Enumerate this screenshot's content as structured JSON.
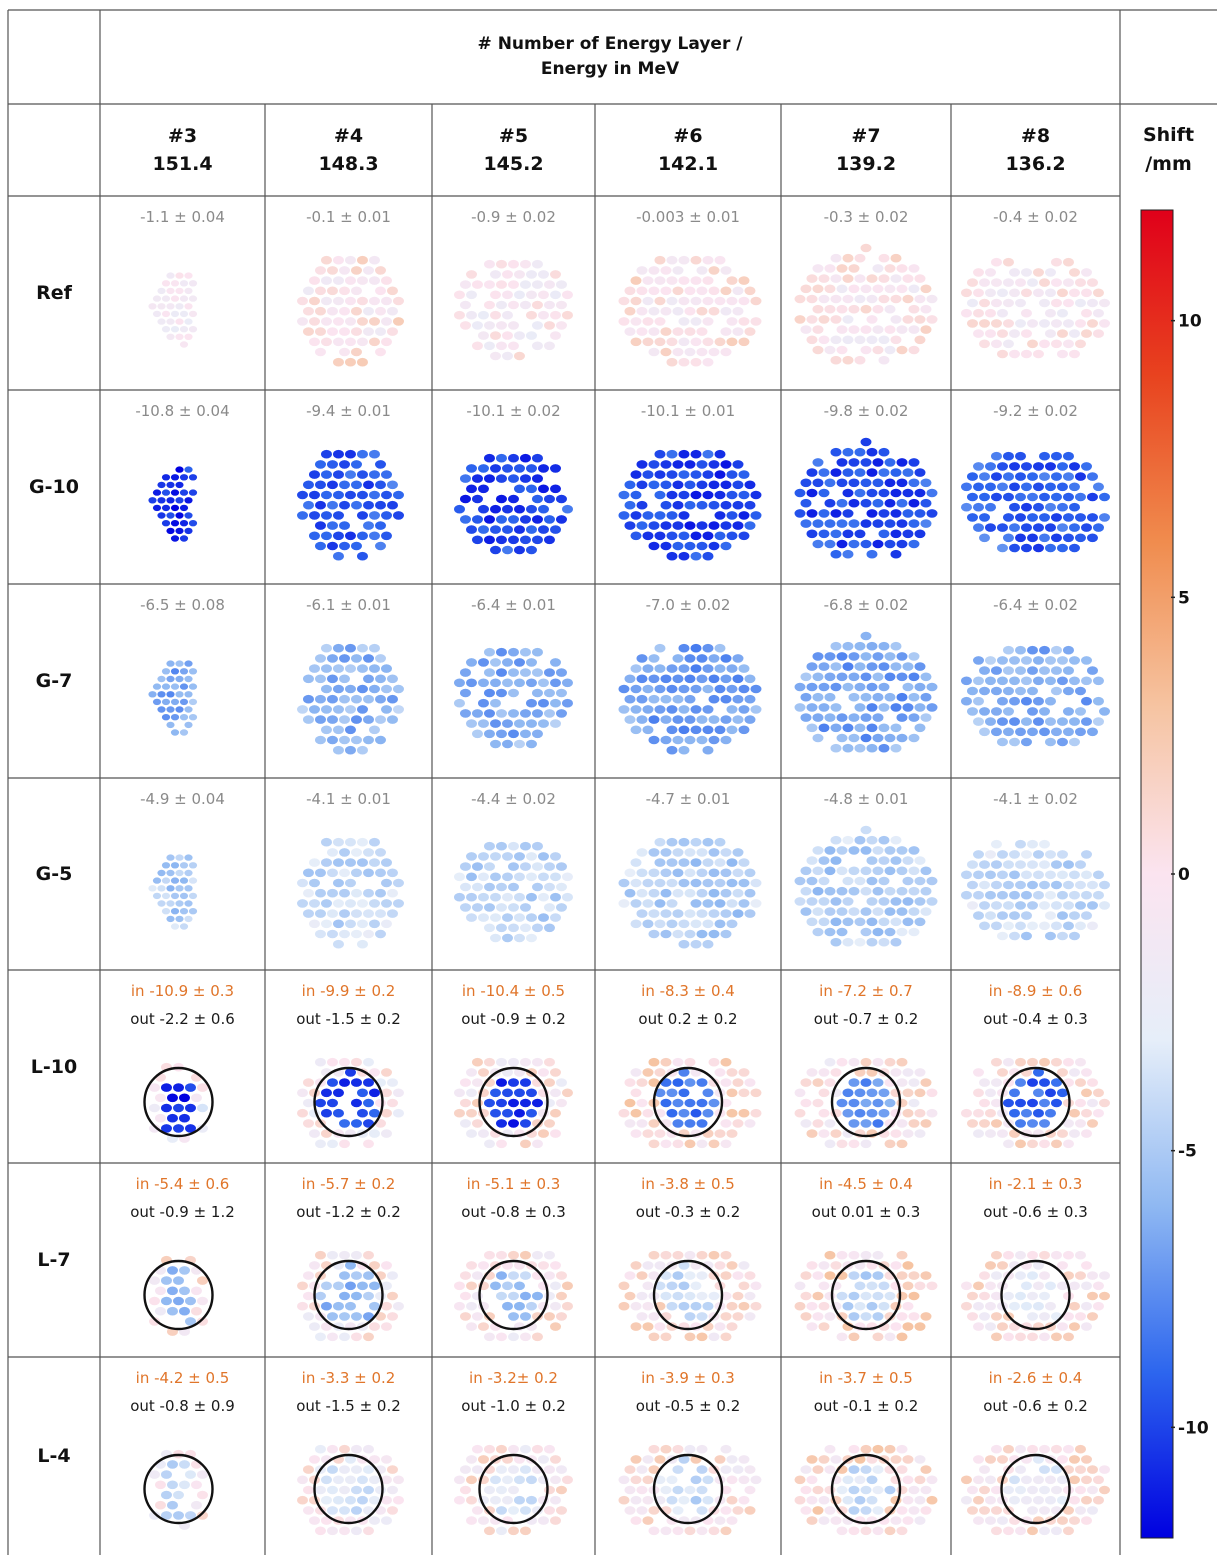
{
  "header": {
    "title_line1": "# Number of Energy Layer /",
    "title_line2": "Energy in MeV",
    "shift_label_line1": "Shift",
    "shift_label_line2": "/mm"
  },
  "chart_data": {
    "type": "heatmap",
    "colormap": {
      "min": -12,
      "max": 12,
      "stops": [
        "#0000e0",
        "#2d66ee",
        "#8fb8f2",
        "#e6eef9",
        "#fbe4f0",
        "#f6c4a2",
        "#f08c4e",
        "#e8431f",
        "#e0001a"
      ],
      "ticks": [
        {
          "value": 10,
          "label": "10"
        },
        {
          "value": 5,
          "label": "5"
        },
        {
          "value": 0,
          "label": "0"
        },
        {
          "value": -5,
          "label": "-5"
        },
        {
          "value": -10,
          "label": "-10"
        }
      ]
    },
    "columns": [
      {
        "layer": "#3",
        "energy": "151.4"
      },
      {
        "layer": "#4",
        "energy": "148.3"
      },
      {
        "layer": "#5",
        "energy": "145.2"
      },
      {
        "layer": "#6",
        "energy": "142.1"
      },
      {
        "layer": "#7",
        "energy": "139.2"
      },
      {
        "layer": "#8",
        "energy": "136.2"
      }
    ],
    "rows": [
      {
        "label": "Ref",
        "kind": "global",
        "cells": [
          {
            "text": "-1.1 ± 0.04",
            "mean": -1.1
          },
          {
            "text": "-0.1 ± 0.01",
            "mean": -0.1
          },
          {
            "text": "-0.9 ± 0.02",
            "mean": -0.9
          },
          {
            "text": "-0.003 ± 0.01",
            "mean": -0.003
          },
          {
            "text": "-0.3 ± 0.02",
            "mean": -0.3
          },
          {
            "text": "-0.4 ± 0.02",
            "mean": -0.4
          }
        ]
      },
      {
        "label": "G-10",
        "kind": "global",
        "cells": [
          {
            "text": "-10.8 ± 0.04",
            "mean": -10.8
          },
          {
            "text": "-9.4 ± 0.01",
            "mean": -9.4
          },
          {
            "text": "-10.1 ± 0.02",
            "mean": -10.1
          },
          {
            "text": "-10.1 ± 0.01",
            "mean": -10.1
          },
          {
            "text": "-9.8 ± 0.02",
            "mean": -9.8
          },
          {
            "text": "-9.2 ± 0.02",
            "mean": -9.2
          }
        ]
      },
      {
        "label": "G-7",
        "kind": "global",
        "cells": [
          {
            "text": "-6.5 ± 0.08",
            "mean": -6.5
          },
          {
            "text": "-6.1 ± 0.01",
            "mean": -6.1
          },
          {
            "text": "-6.4 ± 0.01",
            "mean": -6.4
          },
          {
            "text": "-7.0 ± 0.02",
            "mean": -7.0
          },
          {
            "text": "-6.8 ± 0.02",
            "mean": -6.8
          },
          {
            "text": "-6.4 ± 0.02",
            "mean": -6.4
          }
        ]
      },
      {
        "label": "G-5",
        "kind": "global",
        "cells": [
          {
            "text": "-4.9 ±  0.04",
            "mean": -4.9
          },
          {
            "text": "-4.1 ± 0.01",
            "mean": -4.1
          },
          {
            "text": "-4.4 ± 0.02",
            "mean": -4.4
          },
          {
            "text": "-4.7 ± 0.01",
            "mean": -4.7
          },
          {
            "text": "-4.8 ± 0.01",
            "mean": -4.8
          },
          {
            "text": "-4.1 ± 0.02",
            "mean": -4.1
          }
        ]
      },
      {
        "label": "L-10",
        "kind": "local",
        "cells": [
          {
            "in_text": "in -10.9 ± 0.3",
            "out_text": "out  -2.2 ± 0.6",
            "in_mean": -10.9,
            "out_mean": -2.2
          },
          {
            "in_text": "in -9.9 ± 0.2",
            "out_text": "out -1.5 ± 0.2",
            "in_mean": -9.9,
            "out_mean": -1.5
          },
          {
            "in_text": "in -10.4 ± 0.5",
            "out_text": "out  -0.9 ± 0.2",
            "in_mean": -10.4,
            "out_mean": -0.9
          },
          {
            "in_text": "in -8.3 ± 0.4",
            "out_text": "out 0.2 ± 0.2",
            "in_mean": -8.3,
            "out_mean": 0.2
          },
          {
            "in_text": "in -7.2 ± 0.7",
            "out_text": "out -0.7 ± 0.2",
            "in_mean": -7.2,
            "out_mean": -0.7
          },
          {
            "in_text": "in -8.9 ± 0.6",
            "out_text": "out -0.4  ± 0.3",
            "in_mean": -8.9,
            "out_mean": -0.4
          }
        ]
      },
      {
        "label": "L-7",
        "kind": "local",
        "cells": [
          {
            "in_text": "in -5.4 ± 0.6",
            "out_text": "out -0.9 ± 1.2",
            "in_mean": -5.4,
            "out_mean": -0.9
          },
          {
            "in_text": "in -5.7 ± 0.2",
            "out_text": "out -1.2 ± 0.2",
            "in_mean": -5.7,
            "out_mean": -1.2
          },
          {
            "in_text": "in -5.1 ± 0.3",
            "out_text": "out -0.8 ± 0.3",
            "in_mean": -5.1,
            "out_mean": -0.8
          },
          {
            "in_text": "in -3.8 ± 0.5",
            "out_text": "out -0.3 ± 0.2",
            "in_mean": -3.8,
            "out_mean": -0.3
          },
          {
            "in_text": "in -4.5 ± 0.4",
            "out_text": "out 0.01 ± 0.3",
            "in_mean": -4.5,
            "out_mean": 0.01
          },
          {
            "in_text": "in -2.1 ± 0.3",
            "out_text": "out -0.6 ± 0.3",
            "in_mean": -2.1,
            "out_mean": -0.6
          }
        ]
      },
      {
        "label": "L-4",
        "kind": "local",
        "cells": [
          {
            "in_text": "in -4.2 ± 0.5",
            "out_text": "out -0.8 ±  0.9",
            "in_mean": -4.2,
            "out_mean": -0.8
          },
          {
            "in_text": "in -3.3 ± 0.2",
            "out_text": "out -1.5 ± 0.2",
            "in_mean": -3.3,
            "out_mean": -1.5
          },
          {
            "in_text": "in -3.2± 0.2",
            "out_text": "out -1.0 ± 0.2",
            "in_mean": -3.2,
            "out_mean": -1.0
          },
          {
            "in_text": "in -3.9 ± 0.3",
            "out_text": "out -0.5 ± 0.2",
            "in_mean": -3.9,
            "out_mean": -0.5
          },
          {
            "in_text": "in -3.7 ± 0.5",
            "out_text": "out -0.1 ± 0.2",
            "in_mean": -3.7,
            "out_mean": -0.1
          },
          {
            "in_text": "in -2.6 ± 0.4",
            "out_text": "out -0.6 ± 0.2",
            "in_mean": -2.6,
            "out_mean": -0.6
          }
        ]
      }
    ]
  }
}
